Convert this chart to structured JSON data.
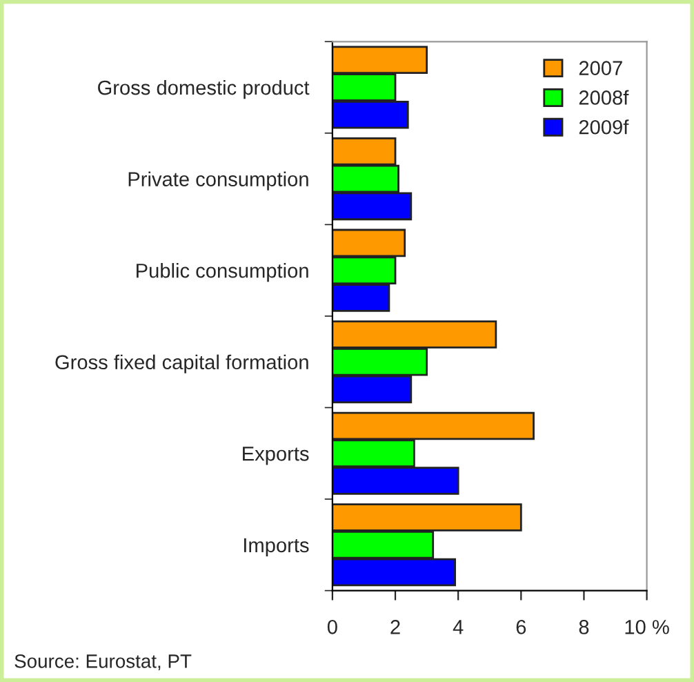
{
  "chart_data": {
    "type": "bar",
    "orientation": "horizontal",
    "categories": [
      "Gross domestic product",
      "Private consumption",
      "Public consumption",
      "Gross fixed capital formation",
      "Exports",
      "Imports"
    ],
    "series": [
      {
        "name": "2007",
        "color": "#ff9900",
        "values": [
          3.0,
          2.0,
          2.3,
          5.2,
          6.4,
          6.0
        ]
      },
      {
        "name": "2008f",
        "color": "#00ff00",
        "values": [
          2.0,
          2.1,
          2.0,
          3.0,
          2.6,
          3.2
        ]
      },
      {
        "name": "2009f",
        "color": "#0000ff",
        "values": [
          2.4,
          2.5,
          1.8,
          2.5,
          4.0,
          3.9
        ]
      }
    ],
    "xlim": [
      0,
      10
    ],
    "xticks": [
      0,
      2,
      4,
      6,
      8,
      {
        "value": 10,
        "label": "10 %"
      }
    ],
    "grid": false,
    "legend": "top right",
    "annotations": [
      "Source: Eurostat, PT"
    ]
  }
}
